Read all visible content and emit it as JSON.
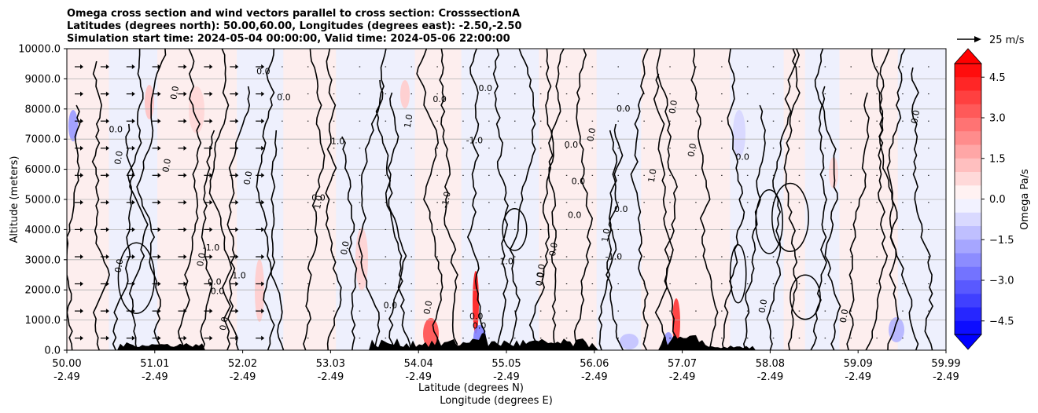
{
  "chart_data": {
    "type": "heatmap",
    "title_lines": [
      "Omega cross section and wind vectors parallel to cross section: CrosssectionA",
      "Latitudes (degrees north): 50.00,60.00, Longitudes (degrees east): -2.50,-2.50",
      "Simulation start time: 2024-05-04 00:00:00, Valid time: 2024-05-06 22:00:00"
    ],
    "xlabel": "Latitude (degrees N)",
    "xlabel2": "Longitude (degrees E)",
    "ylabel": "Altitude (meters)",
    "x_ticks": [
      {
        "lat": "50.00",
        "lon": "-2.49"
      },
      {
        "lat": "51.01",
        "lon": "-2.49"
      },
      {
        "lat": "52.02",
        "lon": "-2.49"
      },
      {
        "lat": "53.03",
        "lon": "-2.49"
      },
      {
        "lat": "54.04",
        "lon": "-2.49"
      },
      {
        "lat": "55.05",
        "lon": "-2.49"
      },
      {
        "lat": "56.06",
        "lon": "-2.49"
      },
      {
        "lat": "57.07",
        "lon": "-2.49"
      },
      {
        "lat": "58.08",
        "lon": "-2.49"
      },
      {
        "lat": "59.09",
        "lon": "-2.49"
      },
      {
        "lat": "59.99",
        "lon": "-2.49"
      }
    ],
    "y_ticks": [
      "0.0",
      "1000.0",
      "2000.0",
      "3000.0",
      "4000.0",
      "5000.0",
      "6000.0",
      "7000.0",
      "8000.0",
      "9000.0",
      "10000.0"
    ],
    "ylim": [
      0,
      10000
    ],
    "grid": "horizontal",
    "colorbar": {
      "label": "Omega Pa/s",
      "ticks": [
        "4.5",
        "3.0",
        "1.5",
        "0.0",
        "−1.5",
        "−3.0",
        "−4.5"
      ],
      "range": [
        -5,
        5
      ],
      "colormap": "bwr",
      "extend": "both"
    },
    "vector_key": {
      "label": "25 m/s",
      "speed": 25
    },
    "contour_labels": [
      "0.0",
      "1.0",
      "-1.0"
    ],
    "colors": {
      "positive": "#ff0000",
      "negative": "#0000ff",
      "neutral": "#ffffff",
      "contour": "#000000",
      "terrain": "#000000"
    }
  }
}
